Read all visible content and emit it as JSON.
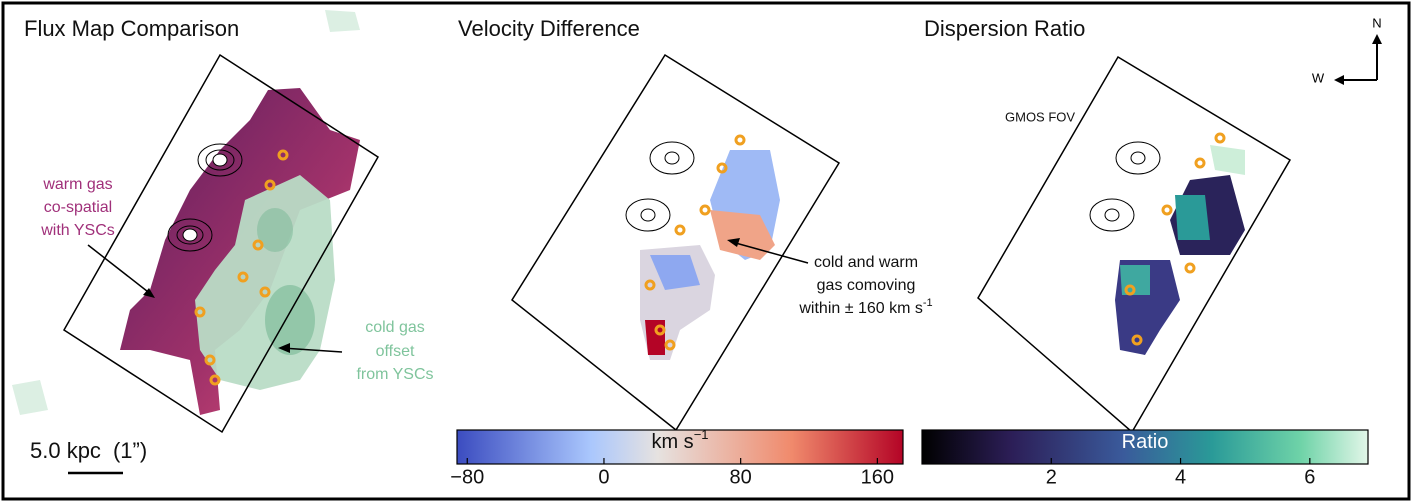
{
  "panels": [
    {
      "title": "Flux Map Comparison",
      "annotations": [
        {
          "lines": [
            "warm gas",
            "co-spatial",
            "with YSCs"
          ]
        },
        {
          "lines": [
            "cold gas",
            "offset",
            "from YSCs"
          ]
        }
      ]
    },
    {
      "title": "Velocity Difference",
      "annotations": [
        {
          "lines": [
            "cold and warm",
            "gas comoving",
            "within ± 160 km s"
          ],
          "superscript": "-1"
        }
      ]
    },
    {
      "title": "Dispersion Ratio",
      "fov_label": "GMOS FOV",
      "compass": {
        "north": "N",
        "west": "W"
      }
    }
  ],
  "scale_bar": {
    "label": "5.0 kpc",
    "angular": "(1”)"
  },
  "colorbars": [
    {
      "label": "km s",
      "label_superscript": "−1",
      "lim": [
        -86,
        175
      ],
      "ticks": [
        {
          "value": -80,
          "label": "−80"
        },
        0,
        80,
        160
      ]
    },
    {
      "label": "Ratio",
      "lim": [
        0,
        6.9
      ],
      "ticks": [
        2,
        4,
        6
      ]
    }
  ]
}
